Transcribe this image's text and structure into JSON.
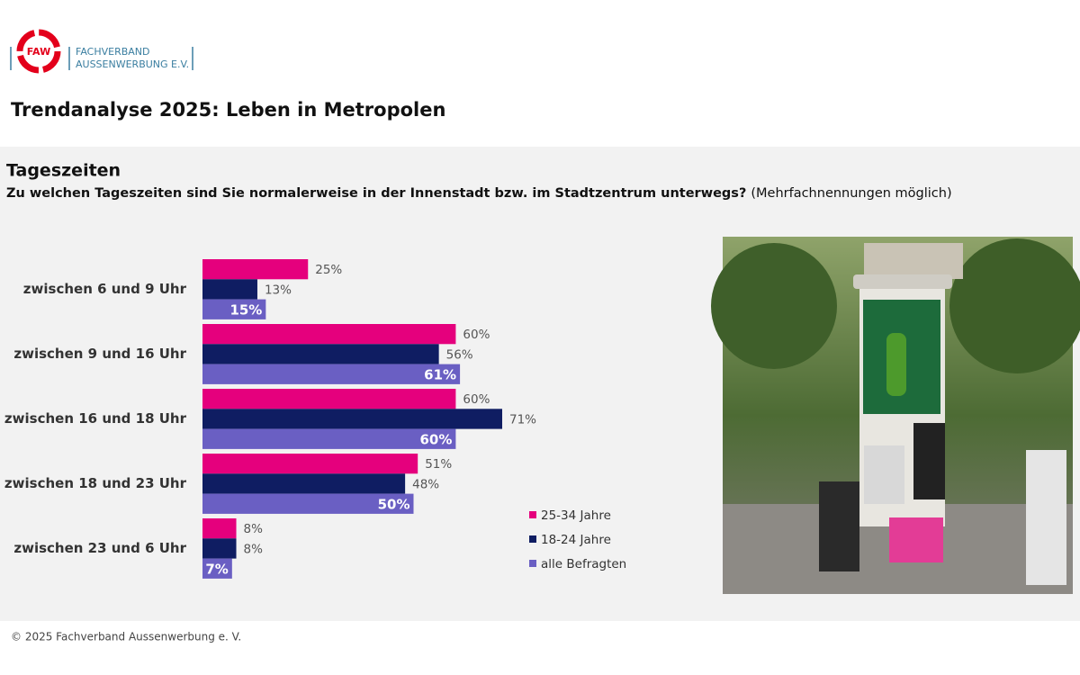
{
  "logo": {
    "mark": "FAW",
    "line1": "FACHVERBAND",
    "line2": "AUSSENWERBUNG E.V."
  },
  "title": "Trendanalyse 2025: Leben in Metropolen",
  "chart_data": {
    "type": "bar",
    "orientation": "horizontal",
    "title": "Tageszeiten",
    "subtitle": "Zu welchen Tageszeiten sind Sie normalerweise in der Innenstadt bzw. im Stadtzentrum unterwegs?",
    "note": "(Mehrfachnennungen möglich)",
    "categories": [
      "zwischen 6 und 9 Uhr",
      "zwischen 9 und 16 Uhr",
      "zwischen 16 und 18 Uhr",
      "zwischen 18 und 23 Uhr",
      "zwischen 23 und 6 Uhr"
    ],
    "series": [
      {
        "name": "25-34 Jahre",
        "color": "#e5007d",
        "values": [
          25,
          60,
          60,
          51,
          8
        ],
        "value_labels": [
          "25%",
          "60%",
          "60%",
          "51%",
          "8%"
        ]
      },
      {
        "name": "18-24 Jahre",
        "color": "#0f1d62",
        "values": [
          13,
          56,
          71,
          48,
          8
        ],
        "value_labels": [
          "13%",
          "56%",
          "71%",
          "48%",
          "8%"
        ]
      },
      {
        "name": "alle Befragten",
        "color": "#6a5fc3",
        "values": [
          15,
          61,
          60,
          50,
          7
        ],
        "value_labels": [
          "15%",
          "61%",
          "60%",
          "50%",
          "7%"
        ]
      }
    ]
  },
  "footer": "© 2025 Fachverband Aussenwerbung e. V."
}
